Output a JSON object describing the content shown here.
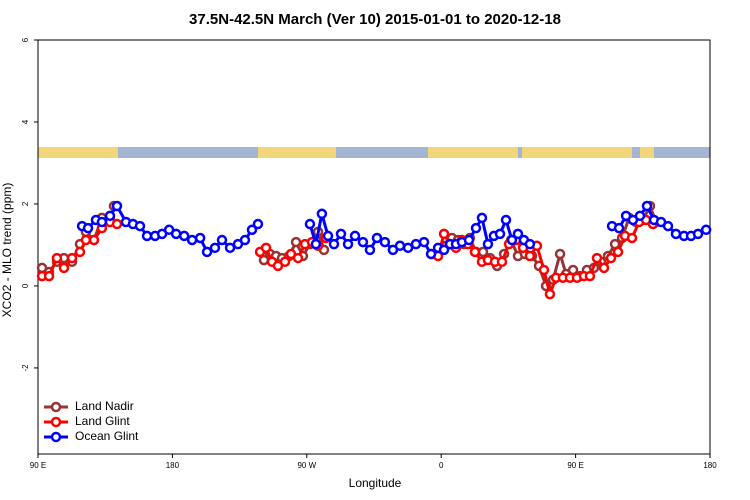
{
  "chart_data": {
    "type": "line",
    "title": "37.5N-42.5N March (Ver 10)   2015-01-01 to 2020-12-18",
    "x_label": "Longitude",
    "y_label": "XCO2 - MLO trend (ppm)",
    "xlim": [
      90,
      540
    ],
    "xticks": [
      {
        "value": 90,
        "label": "90 E"
      },
      180,
      {
        "value": 270,
        "label": "90 W"
      },
      {
        "value": 360,
        "label": "0"
      },
      {
        "value": 450,
        "label": "90 E"
      },
      {
        "value": 540,
        "label": "180"
      }
    ],
    "ylim": [
      -4.1,
      6
    ],
    "yticks": [
      -2,
      0,
      2,
      4,
      6
    ],
    "legend": "bottom-left",
    "series": [
      {
        "name": "Land Nadir",
        "color": "#993333",
        "x": [
          92.7,
          97.4,
          102.7,
          107.4,
          112.8,
          118.1,
          122.1,
          127.5,
          132.8,
          138.2,
          140.9,
          null,
          241.3,
          245.4,
          249.4,
          253.4,
          258.1,
          262.8,
          267.4,
          272.1,
          277.5,
          281.5,
          null,
          363.2,
          367.2,
          371.2,
          375.2,
          379.2,
          383.3,
          388.0,
          392.7,
          397.4,
          402.1,
          406.8,
          411.4,
          416.1,
          420.8,
          425.5,
          430.2,
          434.9,
          439.6,
          443.6,
          448.3,
          453.0,
          457.6,
          462.3,
          467.0,
          471.7,
          476.4,
          481.1,
          485.8,
          490.5,
          495.1,
          499.8,
          503.8
        ],
        "values": [
          0.44,
          0.34,
          0.59,
          0.68,
          0.59,
          1.02,
          1.32,
          1.12,
          1.66,
          1.61,
          1.95,
          null,
          0.63,
          0.78,
          0.73,
          0.68,
          0.73,
          1.07,
          0.73,
          1.02,
          1.32,
          0.88,
          null,
          0.98,
          1.17,
          1.12,
          1.02,
          1.17,
          0.83,
          0.83,
          0.68,
          0.49,
          0.78,
          1.12,
          0.73,
          0.78,
          0.73,
          0.49,
          0,
          0.15,
          0.78,
          0.29,
          0.39,
          0.24,
          0.39,
          0.44,
          0.59,
          0.73,
          1.02,
          1.17,
          1.66,
          1.56,
          1.61,
          1.95,
          1.56
        ]
      },
      {
        "name": "Land Glint",
        "color": "#ff0000",
        "x": [
          92.7,
          97.4,
          102.7,
          107.4,
          112.8,
          118.1,
          122.1,
          127.5,
          132.8,
          138.2,
          142.9,
          null,
          238.7,
          242.7,
          246.7,
          250.7,
          255.4,
          259.4,
          264.1,
          268.8,
          273.5,
          277.5,
          282.8,
          null,
          353.8,
          357.9,
          361.9,
          365.9,
          369.9,
          373.9,
          377.9,
          382.6,
          387.3,
          391.3,
          396.0,
          400.7,
          405.4,
          410.1,
          414.8,
          419.4,
          424.1,
          428.8,
          432.8,
          436.9,
          441.5,
          446.2,
          450.9,
          455.6,
          459.6,
          464.3,
          469.0,
          473.7,
          478.4,
          483.1,
          487.8,
          492.5,
          497.2,
          501.8
        ],
        "values": [
          0.24,
          0.24,
          0.68,
          0.44,
          0.68,
          0.83,
          1.12,
          1.12,
          1.41,
          1.56,
          1.51,
          null,
          0.83,
          0.93,
          0.59,
          0.49,
          0.59,
          0.78,
          0.68,
          1.02,
          1.07,
          0.98,
          1.17,
          null,
          0.78,
          0.73,
          1.27,
          1.02,
          0.93,
          1.12,
          1.02,
          0.83,
          0.59,
          0.63,
          0.59,
          0.59,
          1.02,
          1.12,
          0.93,
          0.73,
          0.98,
          0.39,
          -0.2,
          0.2,
          0.2,
          0.2,
          0.2,
          0.24,
          0.24,
          0.68,
          0.44,
          0.68,
          0.83,
          1.22,
          1.17,
          1.56,
          1.61,
          1.51
        ]
      },
      {
        "name": "Ocean Glint",
        "color": "#0000ff",
        "x": [
          119.5,
          123.5,
          128.8,
          132.8,
          138.2,
          142.9,
          148.9,
          153.6,
          158.3,
          163.0,
          168.4,
          173.1,
          177.8,
          182.5,
          187.9,
          193.2,
          198.6,
          203.2,
          208.5,
          213.2,
          218.6,
          223.9,
          228.6,
          233.3,
          237.3,
          null,
          272.1,
          276.1,
          280.1,
          284.2,
          288.2,
          292.9,
          297.6,
          302.3,
          307.6,
          312.3,
          317.0,
          322.3,
          327.7,
          332.4,
          337.8,
          343.1,
          348.5,
          353.2,
          357.9,
          361.9,
          365.9,
          369.9,
          373.9,
          378.6,
          383.3,
          387.3,
          391.3,
          395.3,
          399.4,
          403.4,
          407.4,
          411.4,
          415.4,
          419.4,
          null,
          474.4,
          479.1,
          483.8,
          488.4,
          493.1,
          497.8,
          502.5,
          507.2,
          511.9,
          517.2,
          522.6,
          527.3,
          532.0,
          537.4
        ],
        "values": [
          1.46,
          1.41,
          1.61,
          1.56,
          1.71,
          1.95,
          1.56,
          1.51,
          1.46,
          1.22,
          1.22,
          1.27,
          1.37,
          1.27,
          1.22,
          1.12,
          1.17,
          0.83,
          0.93,
          1.12,
          0.93,
          1.02,
          1.12,
          1.37,
          1.51,
          null,
          1.51,
          1.02,
          1.76,
          1.22,
          1.02,
          1.27,
          1.02,
          1.22,
          1.07,
          0.88,
          1.17,
          1.07,
          0.88,
          0.98,
          0.93,
          1.02,
          1.07,
          0.78,
          0.93,
          0.88,
          1.02,
          1.02,
          1.07,
          1.12,
          1.41,
          1.66,
          1.02,
          1.22,
          1.27,
          1.61,
          1.12,
          1.27,
          1.12,
          1.02,
          null,
          1.46,
          1.41,
          1.71,
          1.61,
          1.71,
          1.95,
          1.61,
          1.56,
          1.46,
          1.27,
          1.22,
          1.22,
          1.27,
          1.37
        ]
      }
    ]
  }
}
